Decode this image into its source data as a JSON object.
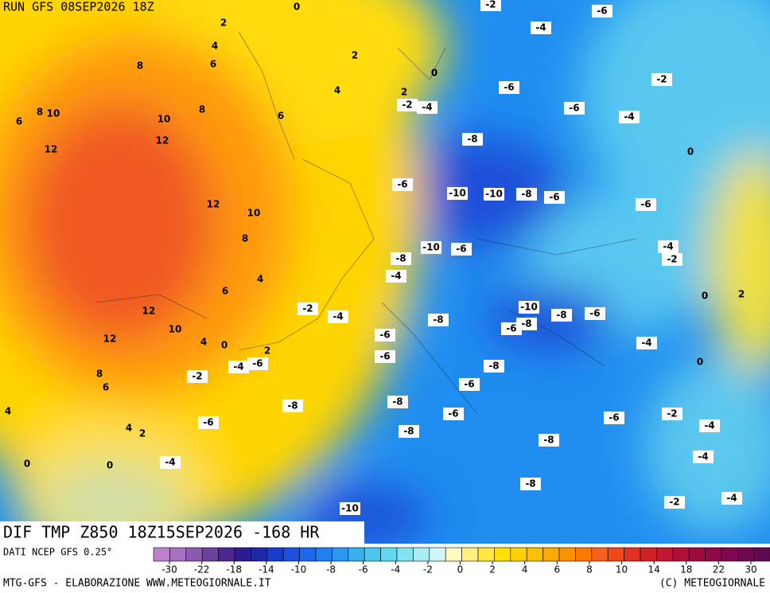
{
  "header": {
    "run": "RUN GFS 08SEP2026 18Z",
    "title": "DIF TMP Z850 18Z15SEP2026 -168 HR",
    "source": "DATI NCEP GFS 0.25°",
    "credit": "MTG-GFS - ELABORAZIONE WWW.METEOGIORNALE.IT",
    "copyright": "(C) METEOGIORNALE"
  },
  "legend": {
    "ticks": [
      -30,
      -22,
      -18,
      -14,
      -10,
      -8,
      -6,
      -4,
      -2,
      0,
      2,
      4,
      6,
      8,
      10,
      14,
      18,
      22,
      30
    ]
  },
  "contour_labels": [
    0,
    -2,
    -6,
    2,
    4,
    -4,
    2,
    8,
    6,
    0,
    -2,
    4,
    2,
    -6,
    -2,
    -4,
    -6,
    8,
    6,
    8,
    10,
    6,
    10,
    -4,
    12,
    -8,
    12,
    0,
    -6,
    -10,
    -10,
    -8,
    -6,
    12,
    -6,
    10,
    8,
    -10,
    -6,
    -4,
    -8,
    -2,
    -4,
    4,
    6,
    0,
    2,
    -10,
    -2,
    -4,
    12,
    -8,
    -6,
    -8,
    -6,
    -8,
    10,
    -6,
    -4,
    4,
    0,
    12,
    2,
    -6,
    -4,
    -6,
    -8,
    0,
    8,
    -2,
    -6,
    6,
    -8,
    -8,
    -6,
    -2,
    4,
    -6,
    -6,
    -4,
    4,
    2,
    -8,
    -8,
    -4,
    0,
    0,
    -4,
    -8,
    -2,
    -4,
    -10
  ]
}
